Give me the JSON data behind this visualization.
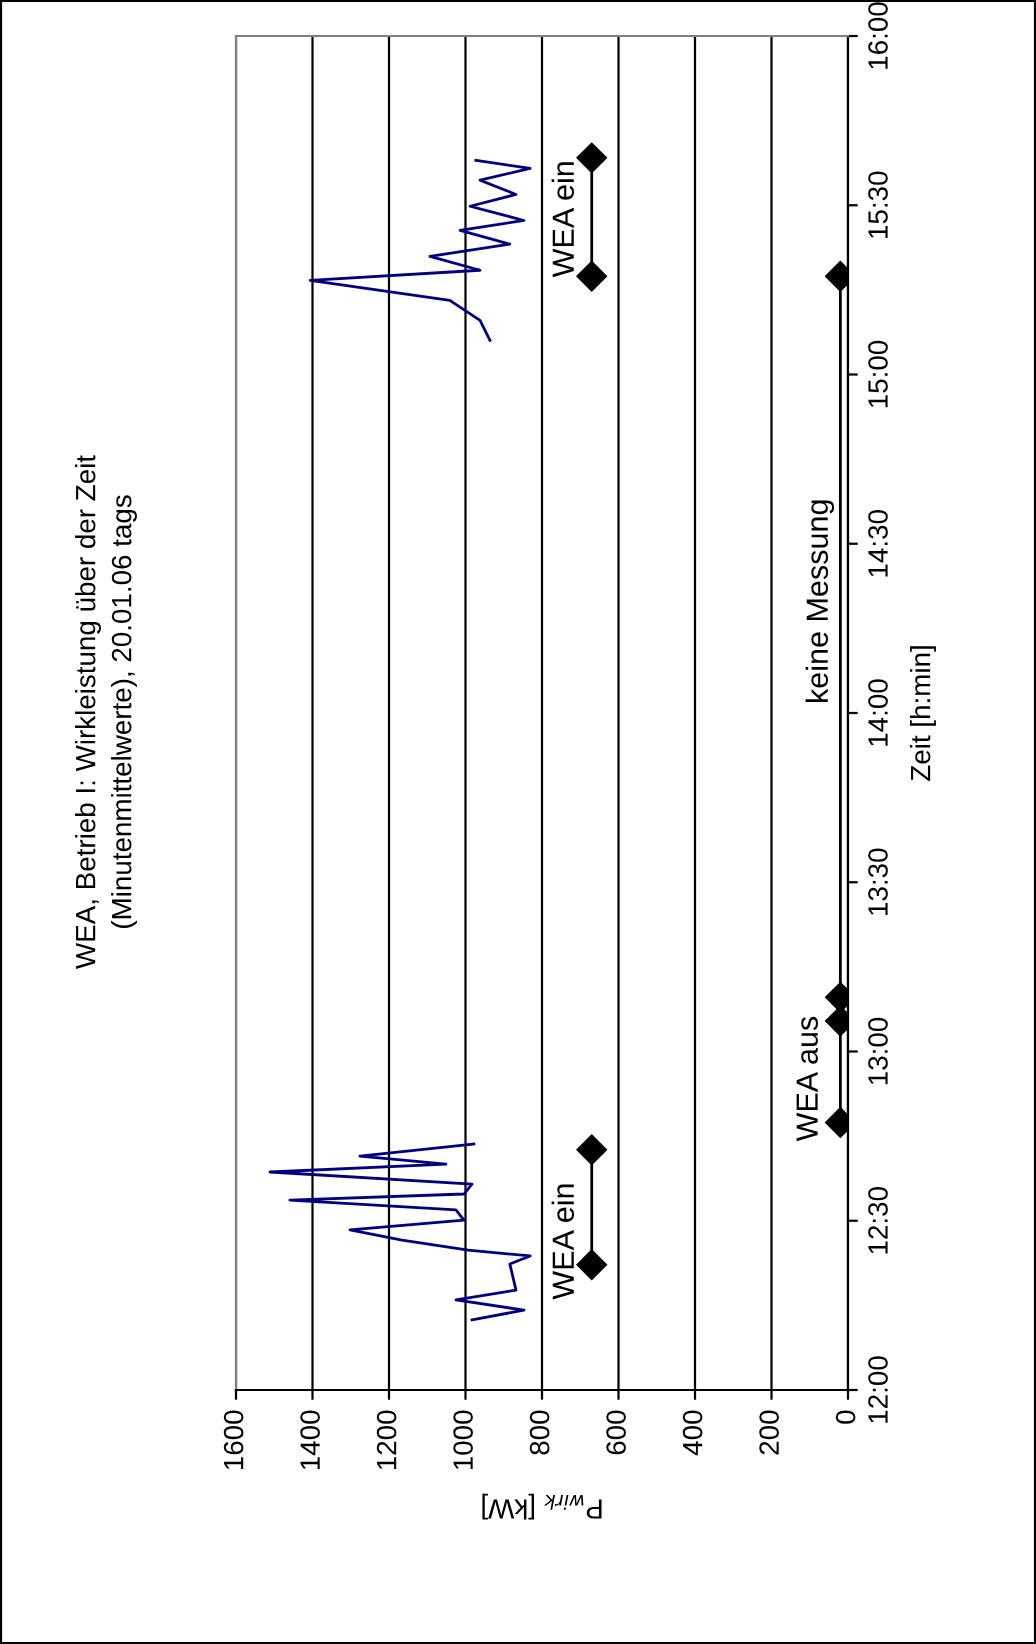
{
  "chart_data": {
    "type": "line",
    "title": "WEA, Betrieb I: Wirkleistung über der Zeit",
    "subtitle": "(Minutenmittelwerte), 20.01.06 tags",
    "xlabel": "P$_{wirk}$ [kW]",
    "ylabel": "Zeit [h:min]",
    "xlim": [
      1600,
      0
    ],
    "ylim": [
      12,
      16
    ],
    "xticks": [
      0,
      200,
      400,
      600,
      800,
      1000,
      1200,
      1400,
      1600
    ],
    "yticks": [
      {
        "value": 12,
        "label": "12:00"
      },
      {
        "value": 12.5,
        "label": "12:30"
      },
      {
        "value": 13,
        "label": "13:00"
      },
      {
        "value": 13.5,
        "label": "13:30"
      },
      {
        "value": 14,
        "label": "14:00"
      },
      {
        "value": 14.5,
        "label": "14:30"
      },
      {
        "value": 15,
        "label": "15:00"
      },
      {
        "value": 15.5,
        "label": "15:30"
      },
      {
        "value": 16,
        "label": "16:00"
      }
    ],
    "grid": "x",
    "legend": false,
    "series": [
      {
        "color": "#000080",
        "marker": "none",
        "x": [
          983,
          847,
          1025,
          868,
          884,
          831,
          993,
          1166,
          1302,
          1004,
          1025,
          1459,
          1004,
          983,
          1511,
          1051,
          1276,
          978
        ],
        "values": [
          12.207,
          12.236,
          12.266,
          12.295,
          12.372,
          12.396,
          12.413,
          12.443,
          12.473,
          12.502,
          12.532,
          12.561,
          12.579,
          12.608,
          12.644,
          12.667,
          12.691,
          12.727
        ]
      },
      {
        "color": "#000080",
        "marker": "none",
        "x": [
          936,
          962,
          1041,
          1406,
          962,
          1093,
          884,
          1014,
          847,
          988,
          868,
          962,
          831,
          973
        ],
        "values": [
          15.101,
          15.16,
          15.219,
          15.278,
          15.308,
          15.349,
          15.385,
          15.426,
          15.455,
          15.497,
          15.532,
          15.574,
          15.609,
          15.633
        ]
      },
      {
        "color": "#000000",
        "marker": "diamond",
        "x": [
          670,
          670
        ],
        "values": [
          12.37,
          12.71
        ]
      },
      {
        "color": "#000000",
        "marker": "diamond",
        "x": [
          20,
          20,
          20,
          20
        ],
        "values": [
          12.79,
          13.09,
          13.16,
          15.29
        ]
      },
      {
        "color": "#000000",
        "marker": "diamond",
        "x": [
          670,
          670
        ],
        "values": [
          15.29,
          15.64
        ]
      }
    ],
    "annotations": [
      "WEA ein",
      "WEA aus",
      "keine Messung",
      "WEA ein"
    ]
  }
}
